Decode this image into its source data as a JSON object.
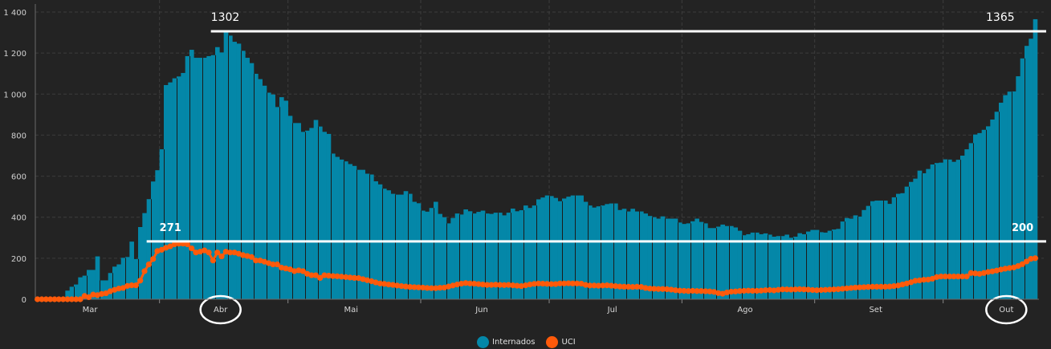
{
  "chart_data": {
    "type": "bar",
    "title": "",
    "xlabel": "",
    "ylabel": "",
    "ylim": [
      0,
      1400
    ],
    "yticks": [
      0,
      200,
      400,
      600,
      800,
      1000,
      1200,
      1400
    ],
    "ytick_labels": [
      "0",
      "200",
      "400",
      "600",
      "800",
      "1 000",
      "1 200",
      "1 400"
    ],
    "grid": true,
    "x_days": 234,
    "months": [
      {
        "label": "Mar",
        "start": -2,
        "end": 29
      },
      {
        "label": "Abr",
        "start": 29,
        "end": 59,
        "circled": true
      },
      {
        "label": "Mai",
        "start": 59,
        "end": 90
      },
      {
        "label": "Jun",
        "start": 90,
        "end": 120
      },
      {
        "label": "Jul",
        "start": 120,
        "end": 151
      },
      {
        "label": "Ago",
        "start": 151,
        "end": 182
      },
      {
        "label": "Set",
        "start": 182,
        "end": 212
      },
      {
        "label": "Out",
        "start": 212,
        "end": 243,
        "circled": true
      }
    ],
    "series": [
      {
        "name": "Internados",
        "kind": "bar",
        "color": "#0487a8",
        "values": [
          0,
          0,
          0,
          0,
          0,
          0,
          0,
          42,
          61,
          72,
          107,
          115,
          143,
          143,
          209,
          92,
          92,
          128,
          159,
          170,
          202,
          206,
          281,
          196,
          352,
          420,
          488,
          574,
          629,
          731,
          1044,
          1057,
          1077,
          1086,
          1103,
          1185,
          1216,
          1177,
          1177,
          1177,
          1185,
          1190,
          1229,
          1203,
          1302,
          1285,
          1255,
          1246,
          1211,
          1177,
          1151,
          1099,
          1073,
          1041,
          1007,
          998,
          937,
          985,
          968,
          894,
          859,
          859,
          816,
          822,
          835,
          874,
          842,
          816,
          806,
          710,
          694,
          681,
          672,
          659,
          650,
          631,
          631,
          612,
          608,
          575,
          560,
          539,
          531,
          514,
          510,
          510,
          527,
          514,
          475,
          468,
          432,
          427,
          445,
          475,
          416,
          400,
          370,
          396,
          418,
          413,
          438,
          429,
          418,
          426,
          432,
          418,
          416,
          422,
          422,
          409,
          422,
          442,
          429,
          434,
          457,
          445,
          457,
          487,
          496,
          506,
          503,
          494,
          478,
          491,
          500,
          506,
          506,
          506,
          475,
          457,
          447,
          453,
          457,
          464,
          467,
          467,
          435,
          441,
          428,
          441,
          428,
          428,
          418,
          406,
          400,
          393,
          404,
          393,
          393,
          393,
          374,
          367,
          370,
          380,
          393,
          377,
          370,
          347,
          347,
          354,
          364,
          357,
          357,
          350,
          334,
          312,
          317,
          325,
          325,
          317,
          321,
          315,
          305,
          308,
          308,
          315,
          300,
          305,
          322,
          317,
          330,
          338,
          338,
          327,
          325,
          334,
          340,
          343,
          379,
          396,
          393,
          409,
          403,
          435,
          455,
          478,
          481,
          481,
          481,
          465,
          497,
          514,
          517,
          549,
          572,
          588,
          627,
          614,
          635,
          657,
          664,
          666,
          682,
          681,
          670,
          680,
          700,
          731,
          761,
          803,
          810,
          826,
          843,
          876,
          914,
          958,
          995,
          1012,
          1013,
          1087,
          1174,
          1235,
          1270,
          1365
        ]
      },
      {
        "name": "UCI",
        "kind": "line-dots",
        "color": "#ff5a0a",
        "values": [
          0,
          0,
          0,
          0,
          0,
          0,
          0,
          0,
          0,
          0,
          0,
          16,
          10,
          23,
          20,
          26,
          29,
          39,
          46,
          52,
          55,
          65,
          68,
          68,
          91,
          137,
          170,
          196,
          235,
          241,
          251,
          258,
          268,
          271,
          271,
          268,
          248,
          228,
          232,
          238,
          228,
          189,
          228,
          209,
          232,
          228,
          228,
          222,
          215,
          211,
          206,
          189,
          189,
          183,
          176,
          170,
          170,
          154,
          150,
          146,
          137,
          141,
          137,
          124,
          117,
          117,
          104,
          117,
          115,
          113,
          112,
          110,
          108,
          106,
          104,
          103,
          98,
          93,
          88,
          82,
          77,
          75,
          72,
          70,
          67,
          64,
          62,
          60,
          59,
          58,
          57,
          55,
          54,
          54,
          56,
          57,
          62,
          67,
          72,
          76,
          79,
          77,
          76,
          74,
          72,
          70,
          70,
          71,
          70,
          69,
          70,
          68,
          66,
          64,
          68,
          72,
          75,
          77,
          76,
          75,
          74,
          74,
          77,
          77,
          78,
          77,
          77,
          76,
          70,
          67,
          67,
          66,
          67,
          68,
          66,
          64,
          62,
          61,
          61,
          60,
          61,
          60,
          55,
          52,
          51,
          50,
          50,
          49,
          47,
          44,
          42,
          41,
          40,
          41,
          40,
          40,
          39,
          38,
          36,
          30,
          27,
          33,
          37,
          38,
          40,
          41,
          42,
          41,
          41,
          42,
          44,
          45,
          43,
          46,
          48,
          48,
          47,
          48,
          49,
          48,
          47,
          45,
          44,
          45,
          46,
          47,
          48,
          49,
          51,
          53,
          55,
          57,
          58,
          59,
          60,
          61,
          61,
          61,
          61,
          62,
          64,
          67,
          72,
          77,
          83,
          90,
          92,
          95,
          96,
          100,
          108,
          111,
          111,
          111,
          111,
          111,
          111,
          111,
          128,
          126,
          124,
          128,
          133,
          136,
          140,
          145,
          149,
          152,
          155,
          162,
          171,
          184,
          197,
          200
        ]
      }
    ],
    "reference_lines": [
      {
        "value": 1306,
        "from_day": 41,
        "labels": [
          {
            "text": "1302",
            "day": 41,
            "style": "normal"
          },
          {
            "text": "1365",
            "day": 222,
            "style": "normal"
          }
        ]
      },
      {
        "value": 282,
        "from_day": 26,
        "labels": [
          {
            "text": "271",
            "day": 29,
            "style": "bold"
          },
          {
            "text": "200",
            "day": 228,
            "style": "bold"
          }
        ]
      }
    ],
    "legend": {
      "placement": "bottom-center",
      "items": [
        "Internados",
        "UCI"
      ]
    }
  }
}
